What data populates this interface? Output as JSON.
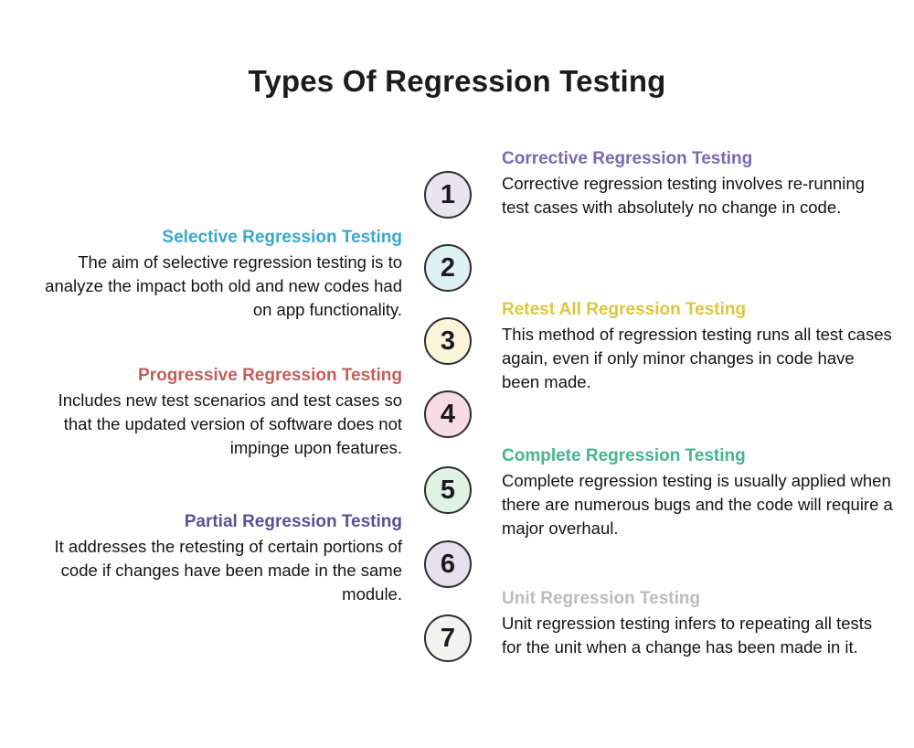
{
  "title": "Types Of Regression Testing",
  "entries": [
    {
      "number": "1",
      "side": "right",
      "heading": "Corrective Regression Testing",
      "heading_color": "#7a6ab0",
      "circle_fill": "#e9e5ed",
      "body": "Corrective regression testing involves re-running test cases with absolutely no change in code."
    },
    {
      "number": "2",
      "side": "left",
      "heading": "Selective Regression Testing",
      "heading_color": "#3ba8c9",
      "circle_fill": "#ddf1f1",
      "body": "The aim of selective regression testing is to analyze the impact both old and new codes had on app functionality."
    },
    {
      "number": "3",
      "side": "right",
      "heading": "Retest All Regression Testing",
      "heading_color": "#ddc63f",
      "circle_fill": "#f8f5d8",
      "body": "This method of regression testing runs all test cases again, even if only minor changes in code have been made."
    },
    {
      "number": "4",
      "side": "left",
      "heading": "Progressive Regression Testing",
      "heading_color": "#c25f5d",
      "circle_fill": "#f6dce4",
      "body": "Includes new test scenarios and test cases so that the updated version of software does not impinge upon features."
    },
    {
      "number": "5",
      "side": "right",
      "heading": "Complete Regression Testing",
      "heading_color": "#47b590",
      "circle_fill": "#dff2e5",
      "body": "Complete regression testing is usually applied when there are numerous bugs and the code will require a major overhaul."
    },
    {
      "number": "6",
      "side": "left",
      "heading": "Partial Regression Testing",
      "heading_color": "#5c5090",
      "circle_fill": "#e6e0ee",
      "body": "It addresses the retesting of certain portions of code if changes have been made in the same module."
    },
    {
      "number": "7",
      "side": "right",
      "heading": "Unit Regression Testing",
      "heading_color": "#bcbcbc",
      "circle_fill": "#f2f3f1",
      "body": "Unit regression testing infers to repeating all tests for the unit when a change has been made in it."
    }
  ]
}
